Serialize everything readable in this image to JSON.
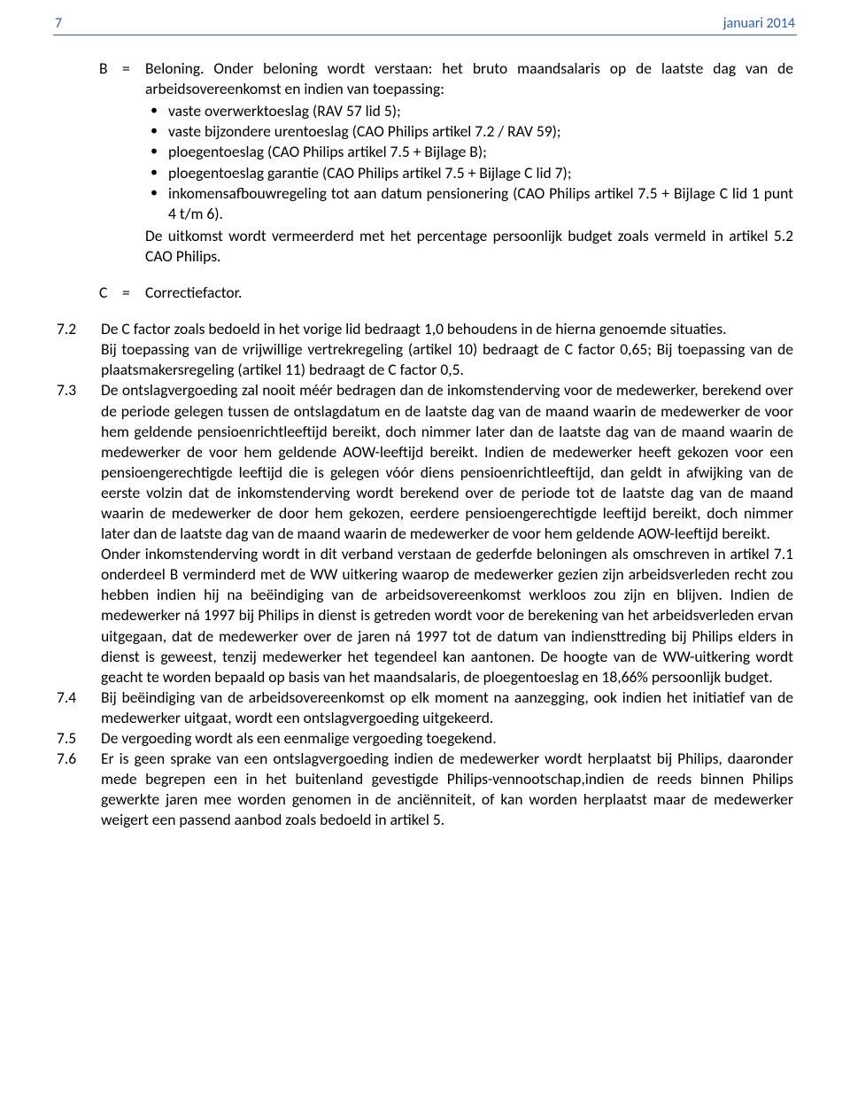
{
  "header": {
    "page_number": "7",
    "date": "januari 2014",
    "accent_color": "#2d5fa4"
  },
  "defB": {
    "label": "B",
    "eq": "=",
    "intro": "Beloning. Onder beloning wordt verstaan: het bruto maandsalaris op de laatste dag van de arbeidsovereenkomst en indien van toepassing:",
    "bullets": [
      "vaste overwerktoeslag (RAV 57 lid 5);",
      "vaste bijzondere urentoeslag (CAO Philips artikel 7.2 / RAV 59);",
      "ploegentoeslag (CAO Philips artikel 7.5 + Bijlage B);",
      "ploegentoeslag garantie (CAO Philips artikel 7.5 + Bijlage C lid 7);",
      "inkomensafbouwregeling tot aan datum pensionering (CAO Philips artikel 7.5 + Bijlage C lid 1 punt 4 t/m 6)."
    ],
    "after": "De uitkomst wordt vermeerderd met het percentage persoonlijk budget zoals vermeld in artikel 5.2 CAO Philips."
  },
  "defC": {
    "label": "C",
    "eq": "=",
    "text": "Correctiefactor."
  },
  "items": [
    {
      "num": "7.2",
      "paras": [
        "De C factor zoals bedoeld in het vorige lid bedraagt 1,0 behoudens in de hierna genoemde situaties.",
        "Bij toepassing van de vrijwillige vertrekregeling (artikel 10) bedraagt de C factor 0,65; Bij toepassing van de plaatsmakersregeling (artikel 11) bedraagt de C factor 0,5."
      ]
    },
    {
      "num": "7.3",
      "paras": [
        "De ontslagvergoeding zal nooit méér bedragen dan de inkomstenderving voor de medewerker, berekend over de periode gelegen tussen de ontslagdatum en de laatste dag van de maand waarin de medewerker de voor hem geldende pensioenrichtleeftijd bereikt, doch nimmer later dan de laatste dag van de maand waarin de medewerker de voor hem geldende AOW-leeftijd bereikt. Indien de medewerker heeft gekozen voor een pensioengerechtigde leeftijd die is gelegen vóór diens pensioenrichtleeftijd, dan geldt in afwijking van de eerste volzin dat de inkomstenderving wordt berekend over de periode tot de laatste dag van de maand waarin de medewerker de door hem gekozen, eerdere pensioengerechtigde leeftijd bereikt, doch nimmer later dan de laatste dag van de maand waarin de medewerker de voor hem geldende AOW-leeftijd bereikt.",
        "Onder inkomstenderving wordt in dit verband verstaan de gederfde beloningen als omschreven in artikel 7.1 onderdeel B verminderd met de WW uitkering waarop de medewerker gezien zijn arbeidsverleden recht zou hebben indien hij na beëindiging van de arbeidsovereenkomst werkloos zou zijn en blijven. Indien de medewerker ná 1997 bij Philips in dienst is getreden wordt voor de berekening van het arbeidsverleden ervan uitgegaan, dat de medewerker over de jaren ná 1997 tot de datum van indiensttreding bij Philips  elders in dienst is geweest, tenzij medewerker het tegendeel kan aantonen. De hoogte van de WW-uitkering wordt geacht te worden bepaald op basis van het maandsalaris, de ploegentoeslag en 18,66% persoonlijk budget."
      ]
    },
    {
      "num": "7.4",
      "paras": [
        "Bij beëindiging van de arbeidsovereenkomst op elk moment na aanzegging, ook indien het initiatief van de medewerker uitgaat, wordt een ontslagvergoeding uitgekeerd."
      ]
    },
    {
      "num": "7.5",
      "paras": [
        "De vergoeding wordt als een eenmalige vergoeding toegekend."
      ]
    },
    {
      "num": "7.6",
      "paras": [
        "Er is geen sprake van een ontslagvergoeding indien de medewerker wordt herplaatst bij Philips, daaronder mede begrepen een in het buitenland gevestigde Philips-vennootschap,indien de reeds binnen Philips gewerkte jaren mee worden genomen in de anciënniteit, of kan worden herplaatst maar de medewerker weigert een passend aanbod zoals bedoeld in artikel 5."
      ]
    }
  ]
}
